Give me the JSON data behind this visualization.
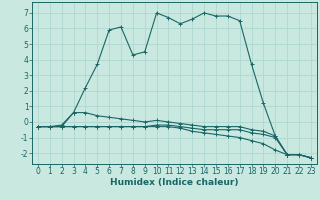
{
  "xlabel": "Humidex (Indice chaleur)",
  "ylabel": "",
  "xlim": [
    -0.5,
    23.5
  ],
  "ylim": [
    -2.7,
    7.7
  ],
  "xticks": [
    0,
    1,
    2,
    3,
    4,
    5,
    6,
    7,
    8,
    9,
    10,
    11,
    12,
    13,
    14,
    15,
    16,
    17,
    18,
    19,
    20,
    21,
    22,
    23
  ],
  "yticks": [
    -2,
    -1,
    0,
    1,
    2,
    3,
    4,
    5,
    6,
    7
  ],
  "bg_color": "#c8e8e0",
  "line_color": "#1a6666",
  "grid_color": "#b0d8d0",
  "lines": [
    {
      "x": [
        0,
        1,
        2,
        3,
        4,
        5,
        6,
        7,
        8,
        9,
        10,
        11,
        12,
        13,
        14,
        15,
        16,
        17,
        18,
        19,
        20,
        21,
        22,
        23
      ],
      "y": [
        -0.3,
        -0.3,
        -0.2,
        0.6,
        2.2,
        3.7,
        5.9,
        6.1,
        4.3,
        4.5,
        7.0,
        6.7,
        6.3,
        6.6,
        7.0,
        6.8,
        6.8,
        6.5,
        3.7,
        1.2,
        -0.9,
        -2.1,
        -2.1,
        -2.3
      ]
    },
    {
      "x": [
        0,
        1,
        2,
        3,
        4,
        5,
        6,
        7,
        8,
        9,
        10,
        11,
        12,
        13,
        14,
        15,
        16,
        17,
        18,
        19,
        20,
        21,
        22,
        23
      ],
      "y": [
        -0.3,
        -0.3,
        -0.3,
        0.6,
        0.6,
        0.4,
        0.3,
        0.2,
        0.1,
        0.0,
        0.1,
        0.0,
        -0.1,
        -0.2,
        -0.3,
        -0.3,
        -0.3,
        -0.3,
        -0.5,
        -0.6,
        -0.9,
        -2.1,
        -2.1,
        -2.3
      ]
    },
    {
      "x": [
        0,
        1,
        2,
        3,
        4,
        5,
        6,
        7,
        8,
        9,
        10,
        11,
        12,
        13,
        14,
        15,
        16,
        17,
        18,
        19,
        20,
        21,
        22,
        23
      ],
      "y": [
        -0.3,
        -0.3,
        -0.3,
        -0.3,
        -0.3,
        -0.3,
        -0.3,
        -0.3,
        -0.3,
        -0.3,
        -0.2,
        -0.2,
        -0.3,
        -0.4,
        -0.5,
        -0.5,
        -0.5,
        -0.5,
        -0.7,
        -0.8,
        -1.0,
        -2.1,
        -2.1,
        -2.3
      ]
    },
    {
      "x": [
        0,
        1,
        2,
        3,
        4,
        5,
        6,
        7,
        8,
        9,
        10,
        11,
        12,
        13,
        14,
        15,
        16,
        17,
        18,
        19,
        20,
        21,
        22,
        23
      ],
      "y": [
        -0.3,
        -0.3,
        -0.3,
        -0.3,
        -0.3,
        -0.3,
        -0.3,
        -0.3,
        -0.3,
        -0.3,
        -0.3,
        -0.3,
        -0.4,
        -0.6,
        -0.7,
        -0.8,
        -0.9,
        -1.0,
        -1.2,
        -1.4,
        -1.8,
        -2.1,
        -2.1,
        -2.3
      ]
    }
  ],
  "marker": "+",
  "markersize": 2.5,
  "linewidth": 0.8,
  "tick_fontsize": 5.5,
  "xlabel_fontsize": 6.5
}
